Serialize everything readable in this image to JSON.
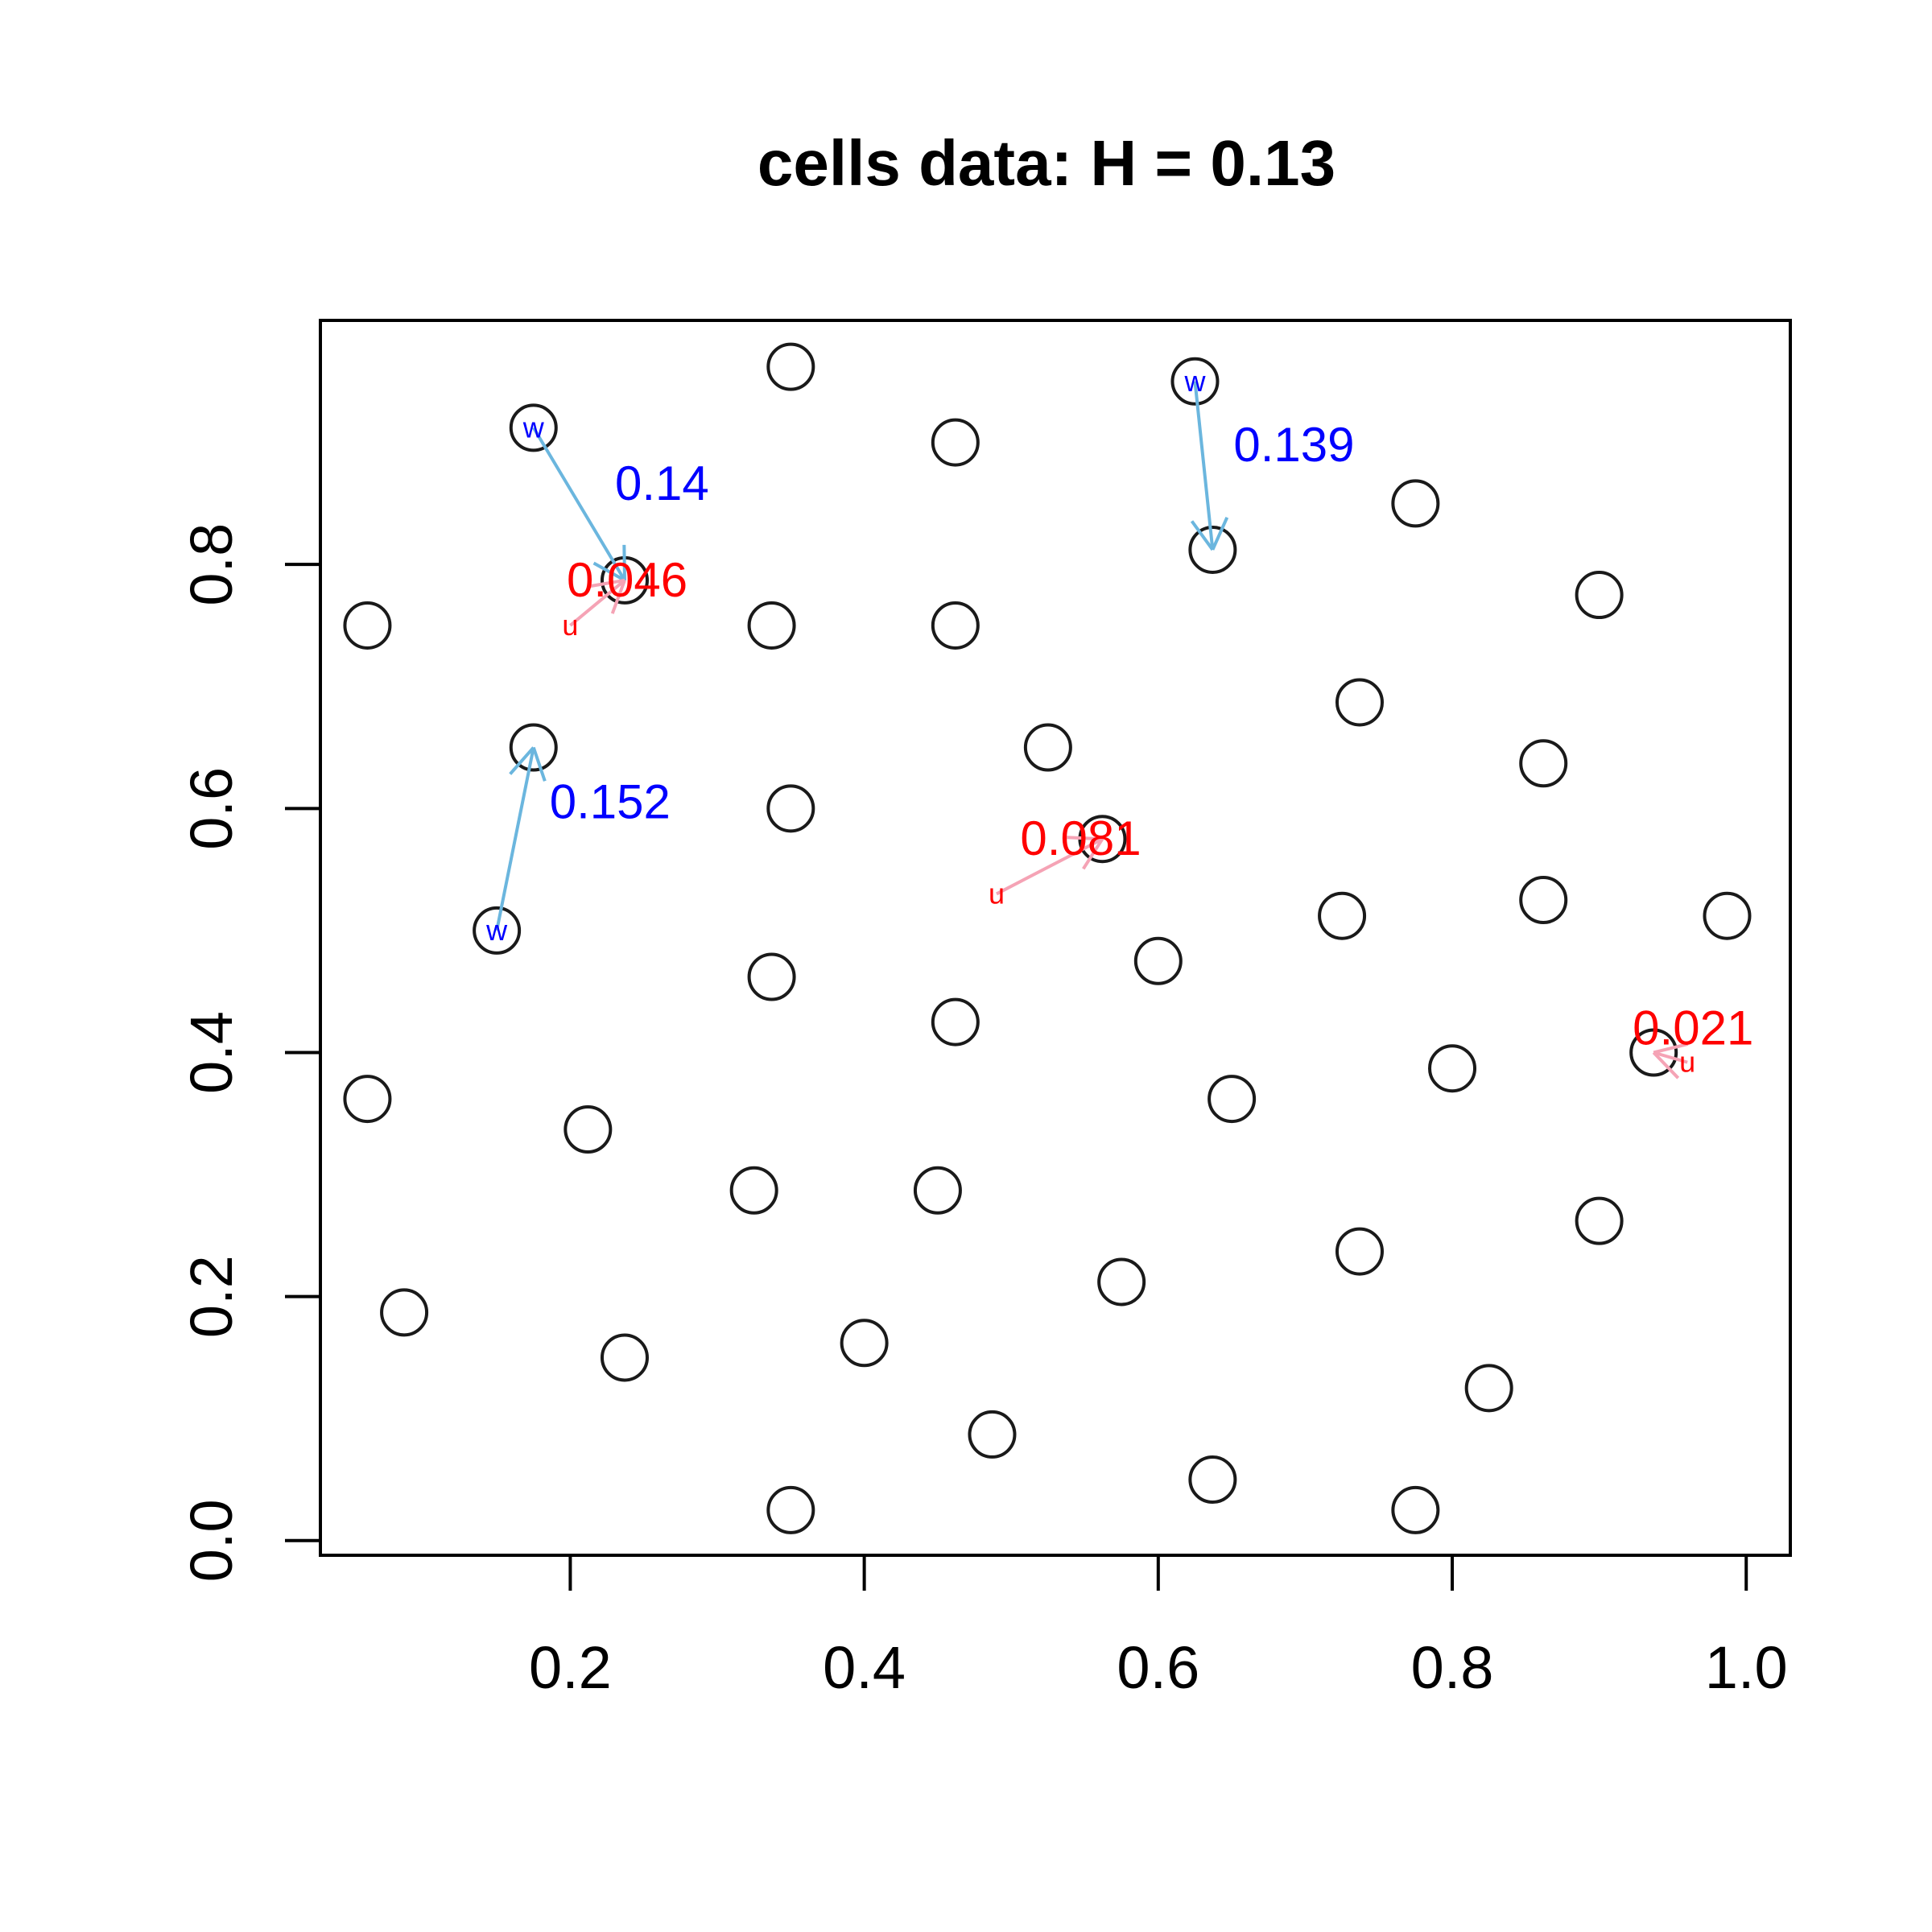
{
  "chart_data": {
    "type": "scatter",
    "title": "cells data: H = 0.13",
    "xlabel": "",
    "ylabel": "",
    "xlim": [
      0.03,
      1.03
    ],
    "ylim": [
      -0.012,
      1.0
    ],
    "x_ticks": [
      0.2,
      0.4,
      0.6,
      0.8,
      1.0
    ],
    "x_tick_labels": [
      "0.2",
      "0.4",
      "0.6",
      "0.8",
      "1.0"
    ],
    "y_ticks": [
      0.0,
      0.2,
      0.4,
      0.6,
      0.8
    ],
    "y_tick_labels": [
      "0.0",
      "0.2",
      "0.4",
      "0.6",
      "0.8"
    ],
    "grid": false,
    "points": [
      {
        "x": 0.35,
        "y": 0.962
      },
      {
        "x": 0.625,
        "y": 0.95
      },
      {
        "x": 0.175,
        "y": 0.912
      },
      {
        "x": 0.462,
        "y": 0.9
      },
      {
        "x": 0.775,
        "y": 0.85
      },
      {
        "x": 0.637,
        "y": 0.812
      },
      {
        "x": 0.237,
        "y": 0.787
      },
      {
        "x": 0.9,
        "y": 0.775
      },
      {
        "x": 0.062,
        "y": 0.75
      },
      {
        "x": 0.337,
        "y": 0.75
      },
      {
        "x": 0.462,
        "y": 0.75
      },
      {
        "x": 0.737,
        "y": 0.687
      },
      {
        "x": 0.175,
        "y": 0.65
      },
      {
        "x": 0.525,
        "y": 0.65
      },
      {
        "x": 0.862,
        "y": 0.637
      },
      {
        "x": 0.35,
        "y": 0.6
      },
      {
        "x": 0.562,
        "y": 0.575
      },
      {
        "x": 0.862,
        "y": 0.525
      },
      {
        "x": 0.725,
        "y": 0.512
      },
      {
        "x": 0.987,
        "y": 0.512
      },
      {
        "x": 0.15,
        "y": 0.5
      },
      {
        "x": 0.6,
        "y": 0.475
      },
      {
        "x": 0.337,
        "y": 0.462
      },
      {
        "x": 0.462,
        "y": 0.425
      },
      {
        "x": 0.937,
        "y": 0.4
      },
      {
        "x": 0.8,
        "y": 0.387
      },
      {
        "x": 0.062,
        "y": 0.362
      },
      {
        "x": 0.65,
        "y": 0.362
      },
      {
        "x": 0.212,
        "y": 0.337
      },
      {
        "x": 0.325,
        "y": 0.287
      },
      {
        "x": 0.45,
        "y": 0.287
      },
      {
        "x": 0.9,
        "y": 0.262
      },
      {
        "x": 0.737,
        "y": 0.237
      },
      {
        "x": 0.575,
        "y": 0.212
      },
      {
        "x": 0.087,
        "y": 0.187
      },
      {
        "x": 0.4,
        "y": 0.162
      },
      {
        "x": 0.237,
        "y": 0.15
      },
      {
        "x": 0.825,
        "y": 0.125
      },
      {
        "x": 0.487,
        "y": 0.087
      },
      {
        "x": 0.637,
        "y": 0.05
      },
      {
        "x": 0.35,
        "y": 0.025
      },
      {
        "x": 0.775,
        "y": 0.025
      }
    ],
    "w_arrows": [
      {
        "from": [
          0.175,
          0.912
        ],
        "to": [
          0.237,
          0.787
        ],
        "label": "0.14",
        "tag": "w"
      },
      {
        "from": [
          0.625,
          0.95
        ],
        "to": [
          0.637,
          0.812
        ],
        "label": "0.139",
        "tag": "w"
      },
      {
        "from": [
          0.15,
          0.5
        ],
        "to": [
          0.175,
          0.65
        ],
        "label": "0.152",
        "tag": "w"
      }
    ],
    "u_arrows": [
      {
        "from": [
          0.2,
          0.75
        ],
        "to": [
          0.237,
          0.787
        ],
        "label": "0.046",
        "tag": "u"
      },
      {
        "from": [
          0.49,
          0.53
        ],
        "to": [
          0.562,
          0.575
        ],
        "label": "0.081",
        "tag": "u"
      },
      {
        "from": [
          0.96,
          0.392
        ],
        "to": [
          0.937,
          0.4
        ],
        "label": "0.021",
        "tag": "u"
      }
    ],
    "colors": {
      "w_arrow": "#6BB6DE",
      "w_text": "#0000FF",
      "u_arrow": "#F5A3B5",
      "u_text": "#FF0000",
      "points": "#1a1a1a"
    }
  }
}
